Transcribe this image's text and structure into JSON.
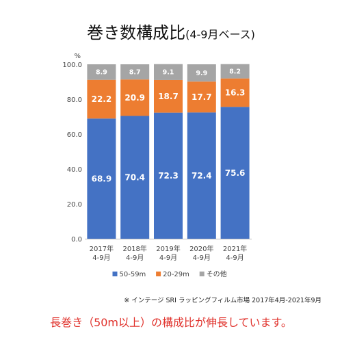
{
  "title": {
    "main": "巻き数構成比",
    "sub": "(4-9月ベース)"
  },
  "note": "※ インテージ SRI ラッピングフィルム市場 2017年4月-2021年9月",
  "caption": "長巻き（50m以上）の構成比が伸長しています。",
  "colors": {
    "blue": "#4472c4",
    "orange": "#ed7d31",
    "gray": "#a5a5a5",
    "axis": "#666666",
    "grid": "#d9d9d9"
  },
  "chart_data": {
    "type": "bar",
    "stacked": true,
    "title": "巻き数構成比(4-9月ベース)",
    "ylabel": "%",
    "ylim": [
      0,
      100
    ],
    "yticks": [
      "0.0",
      "20.0",
      "40.0",
      "60.0",
      "80.0",
      "100.0"
    ],
    "categories": [
      [
        "2017年",
        "4-9月"
      ],
      [
        "2018年",
        "4-9月"
      ],
      [
        "2019年",
        "4-9月"
      ],
      [
        "2020年",
        "4-9月"
      ],
      [
        "2021年",
        "4-9月"
      ]
    ],
    "series": [
      {
        "name": "50-59m",
        "values": [
          68.9,
          70.4,
          72.3,
          72.4,
          75.6
        ],
        "color": "#4472c4"
      },
      {
        "name": "20-29m",
        "values": [
          22.2,
          20.9,
          18.7,
          17.7,
          16.3
        ],
        "color": "#ed7d31"
      },
      {
        "name": "その他",
        "values": [
          8.9,
          8.7,
          9.1,
          9.9,
          8.2
        ],
        "color": "#a5a5a5"
      }
    ],
    "legend_position": "bottom",
    "grid": false
  }
}
